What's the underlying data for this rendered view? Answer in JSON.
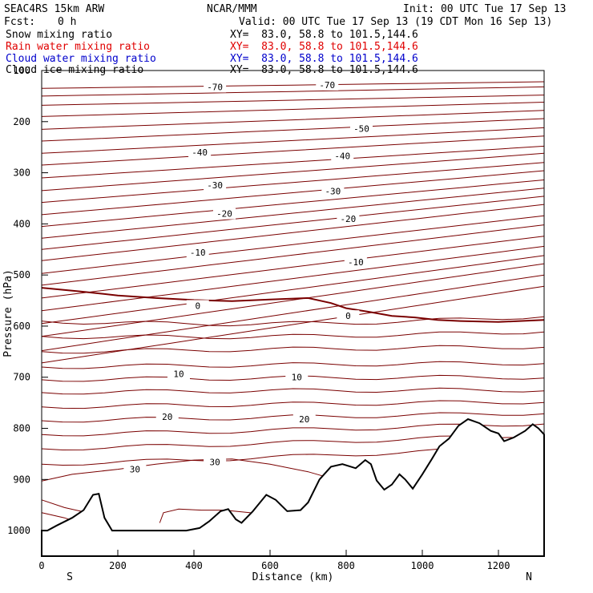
{
  "header": {
    "model": "SEAC4RS 15km ARW",
    "org": "NCAR/MMM",
    "init": "Init: 00 UTC Tue 17 Sep 13",
    "fcst_label": "Fcst:",
    "fcst_value": "0 h",
    "valid": "Valid: 00 UTC Tue 17 Sep 13 (19 CDT Mon 16 Sep 13)"
  },
  "legend": [
    {
      "name": "Snow mixing ratio",
      "xy": "XY=  83.0, 58.8 to 101.5,144.6",
      "color": "#000000"
    },
    {
      "name": "Rain water mixing ratio",
      "xy": "XY=  83.0, 58.8 to 101.5,144.6",
      "color": "#e00000"
    },
    {
      "name": "Cloud water mixing ratio",
      "xy": "XY=  83.0, 58.8 to 101.5,144.6",
      "color": "#0000cc"
    },
    {
      "name": "Cloud ice mixing ratio",
      "xy": "XY=  83.0, 58.8 to 101.5,144.6",
      "color": "#000000"
    }
  ],
  "chart_data": {
    "type": "line",
    "xlabel": "Distance (km)",
    "ylabel": "Pressure (hPa)",
    "xlim": [
      0,
      1320
    ],
    "ylim": [
      1050,
      100
    ],
    "x_ticks": [
      0,
      200,
      400,
      600,
      800,
      1000,
      1200
    ],
    "y_ticks": [
      100,
      200,
      300,
      400,
      500,
      600,
      700,
      800,
      900,
      1000
    ],
    "direction_labels": {
      "left": "S",
      "right": "N"
    },
    "contour_color": "#7a0000",
    "zero_contour_color": "#7a0000",
    "terrain_color": "#000000",
    "contour_labels": [
      {
        "text": "-70",
        "x": 455,
        "p": 132
      },
      {
        "text": "-70",
        "x": 750,
        "p": 128
      },
      {
        "text": "-50",
        "x": 840,
        "p": 214
      },
      {
        "text": "-40",
        "x": 415,
        "p": 260
      },
      {
        "text": "-40",
        "x": 790,
        "p": 267
      },
      {
        "text": "-30",
        "x": 455,
        "p": 324
      },
      {
        "text": "-30",
        "x": 765,
        "p": 336
      },
      {
        "text": "-20",
        "x": 480,
        "p": 380
      },
      {
        "text": "-20",
        "x": 805,
        "p": 390
      },
      {
        "text": "-10",
        "x": 410,
        "p": 456
      },
      {
        "text": "-10",
        "x": 825,
        "p": 475
      },
      {
        "text": "0",
        "x": 410,
        "p": 560
      },
      {
        "text": "0",
        "x": 805,
        "p": 580
      },
      {
        "text": "10",
        "x": 360,
        "p": 693
      },
      {
        "text": "10",
        "x": 670,
        "p": 700
      },
      {
        "text": "20",
        "x": 330,
        "p": 777
      },
      {
        "text": "20",
        "x": 690,
        "p": 782
      },
      {
        "text": "30",
        "x": 245,
        "p": 880
      },
      {
        "text": "30",
        "x": 455,
        "p": 866
      }
    ]
  }
}
